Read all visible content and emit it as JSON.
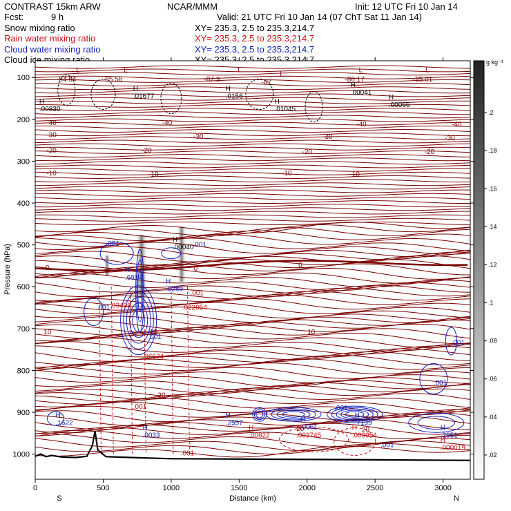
{
  "header": {
    "model": "CONTRAST 15km ARW",
    "org": "NCAR/MMM",
    "init": "Init: 12 UTC Fri 10 Jan 14",
    "fcst_label": "Fcst:",
    "fcst_value": "9 h",
    "valid": "Valid: 21 UTC Fri 10 Jan 14 (07 ChT Sat 11 Jan 14)",
    "xy_text": "XY= 235.3,  2.5 to 235.3,214.7"
  },
  "legend": [
    {
      "label": "Snow mixing ratio",
      "color": "#000000"
    },
    {
      "label": "Rain water mixing ratio",
      "color": "#d01010"
    },
    {
      "label": "Cloud water mixing ratio",
      "color": "#1020c0"
    },
    {
      "label": "Cloud ice mixing ratio",
      "color": "#000000"
    }
  ],
  "colors": {
    "temperature": "#7a0000",
    "zero_line": "#7a0000",
    "rain": "#d01010",
    "cloud_water": "#1020c0",
    "ice": "#000000",
    "terrain": "#000000"
  },
  "chart_data": {
    "type": "contour",
    "xlabel": "Distance (km)",
    "ylabel": "Pressure (hPa)",
    "xlim": [
      0,
      3200
    ],
    "ylim": [
      1060,
      60
    ],
    "x_ticks": [
      0,
      500,
      1000,
      1500,
      2000,
      2500,
      3000
    ],
    "y_ticks": [
      100,
      200,
      300,
      400,
      500,
      600,
      700,
      800,
      900,
      1000
    ],
    "x_end_labels": {
      "left": "S",
      "right": "N"
    },
    "colorbar": {
      "unit": "g kg⁻¹",
      "ticks": [
        ".2",
        ".18",
        ".16",
        ".14",
        ".12",
        ".1",
        ".08",
        ".06",
        ".04",
        ".02"
      ]
    },
    "temperature_contours": [
      {
        "label": "-80",
        "p": 120
      },
      {
        "label": "-40",
        "p": 207
      },
      {
        "label": "-30",
        "p": 238
      },
      {
        "label": "-20",
        "p": 273
      },
      {
        "label": "-10",
        "p": 327
      },
      {
        "label": "0",
        "p": 556
      },
      {
        "label": "10",
        "p": 695
      },
      {
        "label": "20",
        "p": 878
      }
    ],
    "temperature_labels": [
      {
        "label": "-84.64",
        "x": 230,
        "p": 103
      },
      {
        "label": "-85.56",
        "x": 570,
        "p": 103
      },
      {
        "label": "-87.3",
        "x": 1300,
        "p": 103
      },
      {
        "label": "-87",
        "x": 1700,
        "p": 110
      },
      {
        "label": "-86.17",
        "x": 2350,
        "p": 103
      },
      {
        "label": "-85.01",
        "x": 2850,
        "p": 103
      },
      {
        "label": "-40",
        "x": 120,
        "p": 207
      },
      {
        "label": "-40",
        "x": 970,
        "p": 207
      },
      {
        "label": "-40",
        "x": 2400,
        "p": 210
      },
      {
        "label": "-40",
        "x": 3100,
        "p": 210
      },
      {
        "label": "-30",
        "x": 120,
        "p": 236
      },
      {
        "label": "-30",
        "x": 1200,
        "p": 240
      },
      {
        "label": "-30",
        "x": 2150,
        "p": 240
      },
      {
        "label": "-30",
        "x": 3050,
        "p": 243
      },
      {
        "label": "-20",
        "x": 120,
        "p": 273
      },
      {
        "label": "-20",
        "x": 820,
        "p": 273
      },
      {
        "label": "-20",
        "x": 2000,
        "p": 276
      },
      {
        "label": "-20",
        "x": 2900,
        "p": 276
      },
      {
        "label": "-10",
        "x": 120,
        "p": 327
      },
      {
        "label": "-10",
        "x": 870,
        "p": 330
      },
      {
        "label": "-10",
        "x": 1850,
        "p": 327
      },
      {
        "label": "-10",
        "x": 2350,
        "p": 330
      },
      {
        "label": "0",
        "x": 90,
        "p": 553
      },
      {
        "label": "0",
        "x": 1180,
        "p": 555
      },
      {
        "label": "0",
        "x": 1950,
        "p": 547
      },
      {
        "label": "10",
        "x": 90,
        "p": 707
      },
      {
        "label": "10",
        "x": 870,
        "p": 707
      },
      {
        "label": "10",
        "x": 2030,
        "p": 707
      },
      {
        "label": "20",
        "x": 930,
        "p": 858
      },
      {
        "label": "20",
        "x": 1950,
        "p": 938
      },
      {
        "label": "20",
        "x": 2430,
        "p": 940
      }
    ],
    "hi_lo_labels": [
      {
        "mark": "L",
        "x": 300,
        "p": 87,
        "color": "#7a0000"
      },
      {
        "mark": "L",
        "x": 650,
        "p": 87,
        "color": "#7a0000"
      },
      {
        "mark": "L",
        "x": 1490,
        "p": 87,
        "color": "#7a0000"
      },
      {
        "mark": "L",
        "x": 1800,
        "p": 97,
        "color": "#7a0000"
      },
      {
        "mark": "L",
        "x": 2380,
        "p": 87,
        "color": "#7a0000"
      },
      {
        "mark": "L",
        "x": 2870,
        "p": 87,
        "color": "#7a0000"
      },
      {
        "mark": "H",
        "x": 30,
        "p": 162,
        "color": "#000000",
        "value": ".00830"
      },
      {
        "mark": "H",
        "x": 720,
        "p": 132,
        "color": "#000000",
        "value": ".01677"
      },
      {
        "mark": "H",
        "x": 1400,
        "p": 132,
        "color": "#000000",
        "value": ".0156"
      },
      {
        "mark": "H",
        "x": 1760,
        "p": 162,
        "color": "#000000",
        "value": ".01045"
      },
      {
        "mark": "H",
        "x": 2320,
        "p": 123,
        "color": "#000000",
        "value": ".00041"
      },
      {
        "mark": "H",
        "x": 2600,
        "p": 152,
        "color": "#000000",
        "value": ".00066"
      },
      {
        "mark": "H",
        "x": 1010,
        "p": 492,
        "color": "#000000",
        "value": ".00040"
      },
      {
        "mark": "H",
        "x": 660,
        "p": 565,
        "color": "#1020c0",
        "value": ".6914"
      },
      {
        "mark": "H",
        "x": 960,
        "p": 592,
        "color": "#1020c0",
        "value": ".0289"
      },
      {
        "mark": "H",
        "x": 150,
        "p": 912,
        "color": "#1020c0",
        "value": ".1622"
      },
      {
        "mark": "H",
        "x": 790,
        "p": 942,
        "color": "#1020c0",
        "value": ".0033"
      },
      {
        "mark": "H",
        "x": 1400,
        "p": 912,
        "color": "#1020c0",
        "value": ".2557"
      },
      {
        "mark": "H",
        "x": 1950,
        "p": 922,
        "color": "#1020c0",
        "value": ".0061"
      },
      {
        "mark": "H",
        "x": 2350,
        "p": 912,
        "color": "#1020c0",
        "value": ".7139"
      },
      {
        "mark": "H",
        "x": 2980,
        "p": 942,
        "color": "#1020c0",
        "value": ".2951"
      },
      {
        "mark": "H",
        "x": 1570,
        "p": 942,
        "color": "#d01010",
        "value": ".00822"
      },
      {
        "mark": "H",
        "x": 1920,
        "p": 942,
        "color": "#d01010",
        "value": ".003745"
      },
      {
        "mark": "H",
        "x": 2330,
        "p": 942,
        "color": "#d01010",
        "value": ".009954"
      },
      {
        "mark": "H",
        "x": 2980,
        "p": 972,
        "color": "#d01010",
        "value": ".000019"
      }
    ],
    "extra_values": [
      {
        "text": ".001",
        "x": 520,
        "p": 502,
        "color": "#1020c0"
      },
      {
        "text": ".001",
        "x": 1160,
        "p": 505,
        "color": "#1020c0"
      },
      {
        "text": ".001",
        "x": 1140,
        "p": 620,
        "color": "#d01010"
      },
      {
        "text": ".022054",
        "x": 1080,
        "p": 655,
        "color": "#d01010"
      },
      {
        "text": ".001",
        "x": 450,
        "p": 655,
        "color": "#1020c0"
      },
      {
        "text": ".03409",
        "x": 550,
        "p": 650,
        "color": "#d01010"
      },
      {
        "text": ".001",
        "x": 830,
        "p": 725,
        "color": "#1020c0"
      },
      {
        "text": ".06674",
        "x": 790,
        "p": 772,
        "color": "#d01010"
      },
      {
        "text": ".001",
        "x": 720,
        "p": 892,
        "color": "#d01010"
      },
      {
        "text": ".001",
        "x": 3060,
        "p": 738,
        "color": "#1020c0"
      },
      {
        "text": ".001",
        "x": 2930,
        "p": 835,
        "color": "#1020c0"
      },
      {
        "text": ".001",
        "x": 2200,
        "p": 895,
        "color": "#1020c0"
      },
      {
        "text": ".001",
        "x": 2540,
        "p": 983,
        "color": "#1020c0"
      },
      {
        "text": ".001",
        "x": 1070,
        "p": 1003,
        "color": "#d01010"
      }
    ]
  }
}
